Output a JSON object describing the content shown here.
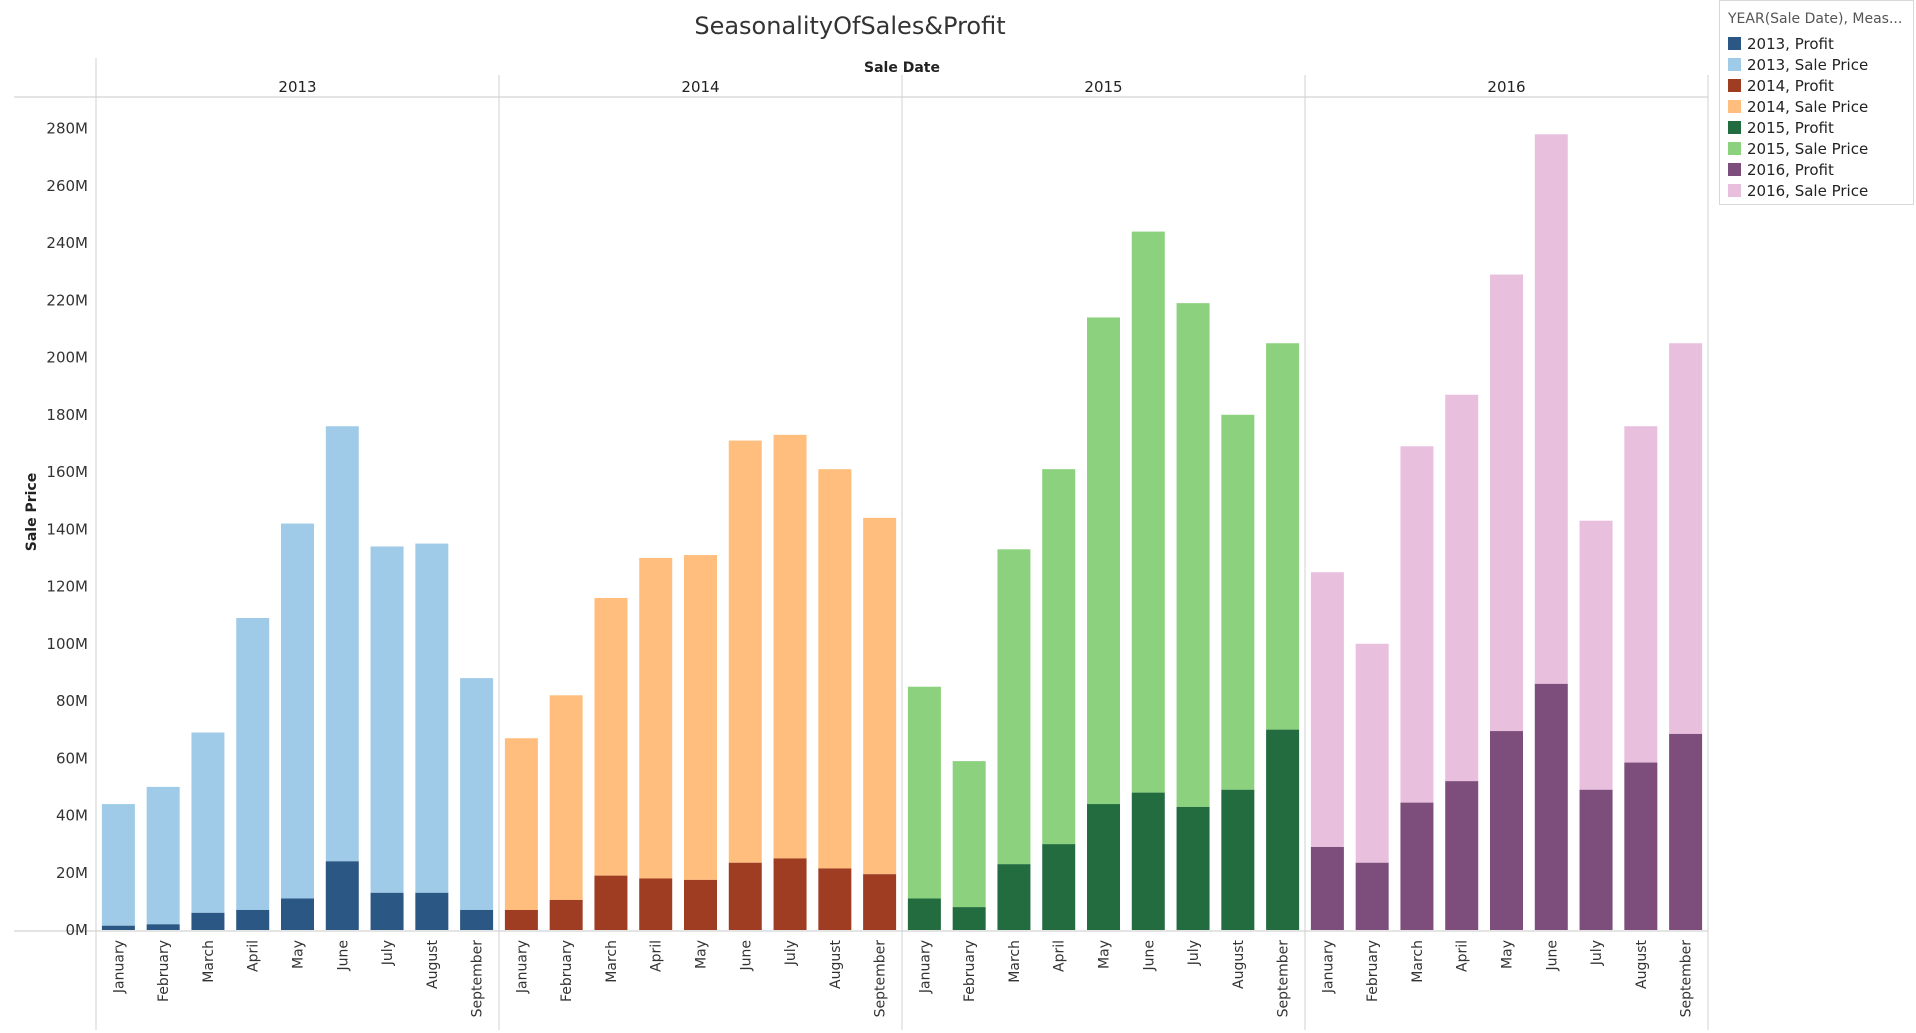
{
  "title": "SeasonalityOfSales&Profit",
  "legend": {
    "title": "YEAR(Sale Date), Meas...",
    "items": [
      {
        "label": "2013, Profit",
        "color": "#2a5783"
      },
      {
        "label": "2013, Sale Price",
        "color": "#a0cbe8"
      },
      {
        "label": "2014, Profit",
        "color": "#9e3d22"
      },
      {
        "label": "2014, Sale Price",
        "color": "#ffbe7d"
      },
      {
        "label": "2015, Profit",
        "color": "#226c3f"
      },
      {
        "label": "2015, Sale Price",
        "color": "#8cd17d"
      },
      {
        "label": "2016, Profit",
        "color": "#7d4d7b"
      },
      {
        "label": "2016, Sale Price",
        "color": "#e9bfde"
      }
    ]
  },
  "chart_data": {
    "type": "bar",
    "title": "SeasonalityOfSales&Profit",
    "xlabel": "Sale Date",
    "ylabel": "Sale Price",
    "ylim": [
      0,
      290
    ],
    "ytick_values": [
      0,
      20,
      40,
      60,
      80,
      100,
      120,
      140,
      160,
      180,
      200,
      220,
      240,
      260,
      280
    ],
    "ytick_labels": [
      "0M",
      "20M",
      "40M",
      "60M",
      "80M",
      "100M",
      "120M",
      "140M",
      "160M",
      "180M",
      "200M",
      "220M",
      "240M",
      "260M",
      "280M"
    ],
    "units": "M",
    "categories": [
      "January",
      "February",
      "March",
      "April",
      "May",
      "June",
      "July",
      "August",
      "September"
    ],
    "panels": [
      {
        "year": "2013",
        "profit": [
          1.5,
          2,
          6,
          7,
          11,
          24,
          13,
          13,
          7
        ],
        "sale_price": [
          44,
          50,
          69,
          109,
          142,
          176,
          134,
          135,
          88
        ],
        "profit_color": "#2a5783",
        "sale_color": "#a0cbe8"
      },
      {
        "year": "2014",
        "profit": [
          7,
          10.5,
          19,
          18,
          17.5,
          23.5,
          25,
          21.5,
          19.5
        ],
        "sale_price": [
          67,
          82,
          116,
          130,
          131,
          171,
          173,
          161,
          144
        ],
        "profit_color": "#9e3d22",
        "sale_color": "#ffbe7d"
      },
      {
        "year": "2015",
        "profit": [
          11,
          8,
          23,
          30,
          44,
          48,
          43,
          49,
          70
        ],
        "sale_price": [
          85,
          59,
          133,
          161,
          214,
          244,
          219,
          180,
          205
        ],
        "profit_color": "#226c3f",
        "sale_color": "#8cd17d"
      },
      {
        "year": "2016",
        "profit": [
          29,
          23.5,
          44.5,
          52,
          69.5,
          86,
          49,
          58.5,
          68.5
        ],
        "sale_price": [
          125,
          100,
          169,
          187,
          229,
          278,
          143,
          176,
          205
        ],
        "profit_color": "#7d4d7b",
        "sale_color": "#e9bfde"
      }
    ],
    "grid": false,
    "legend_position": "top-right"
  }
}
